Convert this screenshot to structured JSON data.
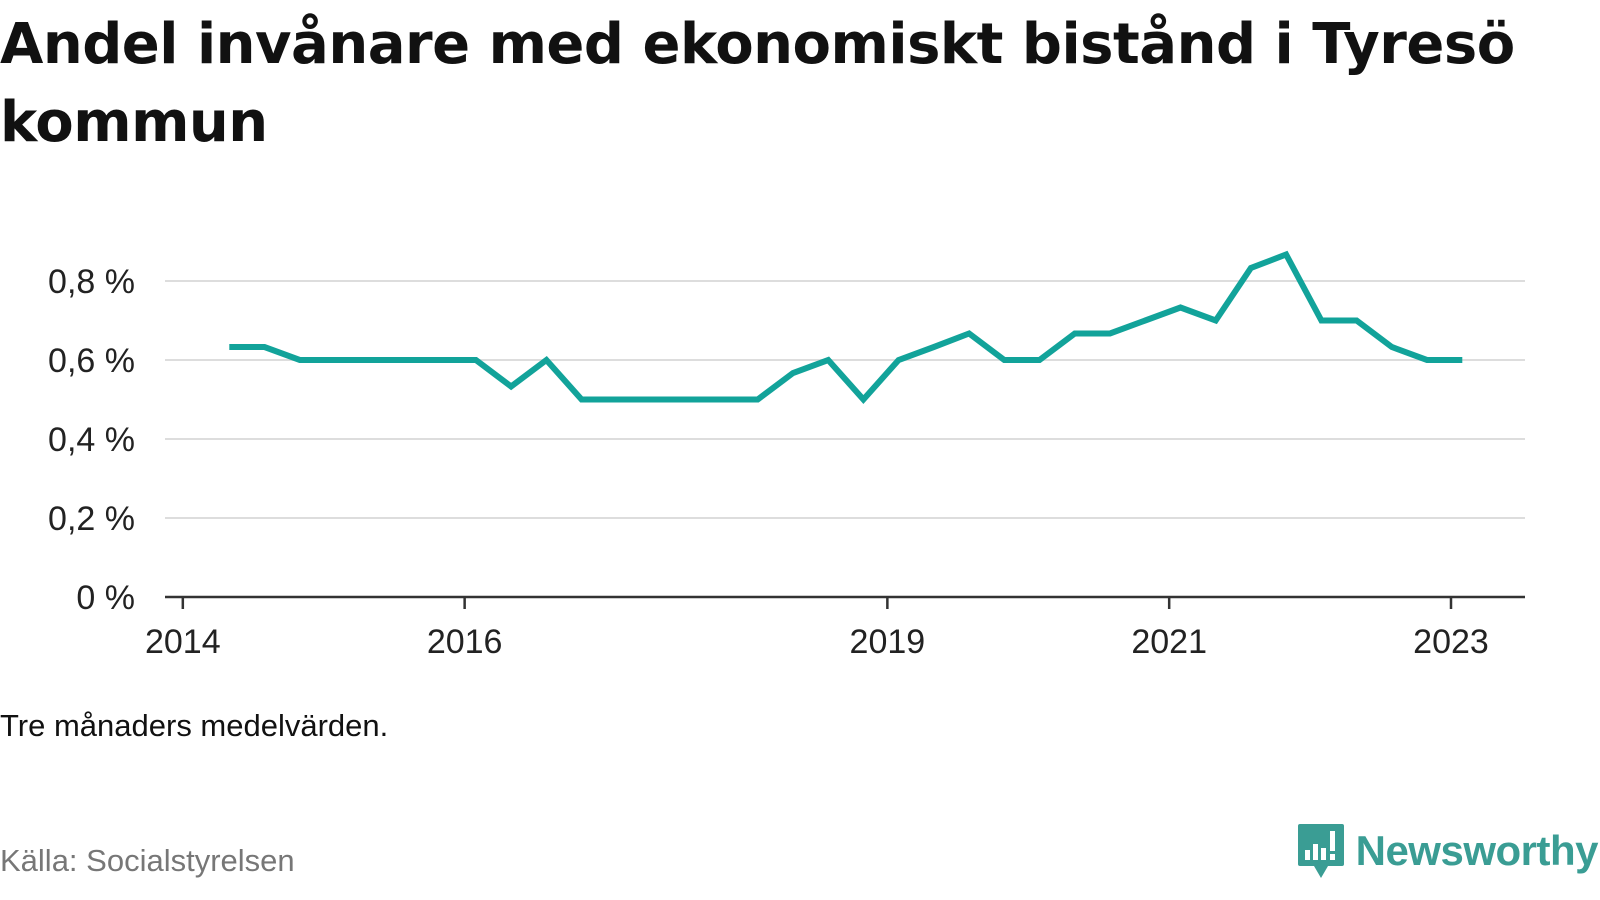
{
  "title": "Andel invånare med ekonomiskt bistånd i Tyresö kommun",
  "note": "Tre månaders medelvärden.",
  "source": "Källa: Socialstyrelsen",
  "brand": {
    "name": "Newsworthy",
    "icon": "newsworthy-logo-icon",
    "color": "#3a9d94"
  },
  "colors": {
    "line": "#12a39a",
    "grid": "#dddddd",
    "axis": "#333333"
  },
  "chart_data": {
    "type": "line",
    "title": "Andel invånare med ekonomiskt bistånd i Tyresö kommun",
    "xlabel": "",
    "ylabel": "",
    "ylim": [
      0,
      0.8
    ],
    "yticks": [
      0,
      0.2,
      0.4,
      0.6,
      0.8
    ],
    "ytick_labels": [
      "0 %",
      "0,2 %",
      "0,4 %",
      "0,6 %",
      "0,8 %"
    ],
    "xticks": [
      2014,
      2016,
      2019,
      2021,
      2023
    ],
    "xtick_labels": [
      "2014",
      "2016",
      "2019",
      "2021",
      "2023"
    ],
    "grid": true,
    "series": [
      {
        "x": [
          2014.33,
          2014.58,
          2014.83,
          2015.08,
          2015.33,
          2015.58,
          2015.83,
          2016.08,
          2016.33,
          2016.58,
          2016.83,
          2017.08,
          2017.33,
          2017.58,
          2017.83,
          2018.08,
          2018.33,
          2018.58,
          2018.83,
          2019.08,
          2019.33,
          2019.58,
          2019.83,
          2020.08,
          2020.33,
          2020.58,
          2020.83,
          2021.08,
          2021.33,
          2021.58,
          2021.83,
          2022.08,
          2022.33,
          2022.58,
          2022.83,
          2023.08
        ],
        "values": [
          0.633,
          0.633,
          0.6,
          0.6,
          0.6,
          0.6,
          0.6,
          0.6,
          0.533,
          0.6,
          0.5,
          0.5,
          0.5,
          0.5,
          0.5,
          0.5,
          0.567,
          0.6,
          0.5,
          0.6,
          0.633,
          0.667,
          0.6,
          0.6,
          0.667,
          0.667,
          0.7,
          0.733,
          0.7,
          0.833,
          0.867,
          0.7,
          0.7,
          0.633,
          0.6,
          0.6
        ]
      }
    ]
  }
}
